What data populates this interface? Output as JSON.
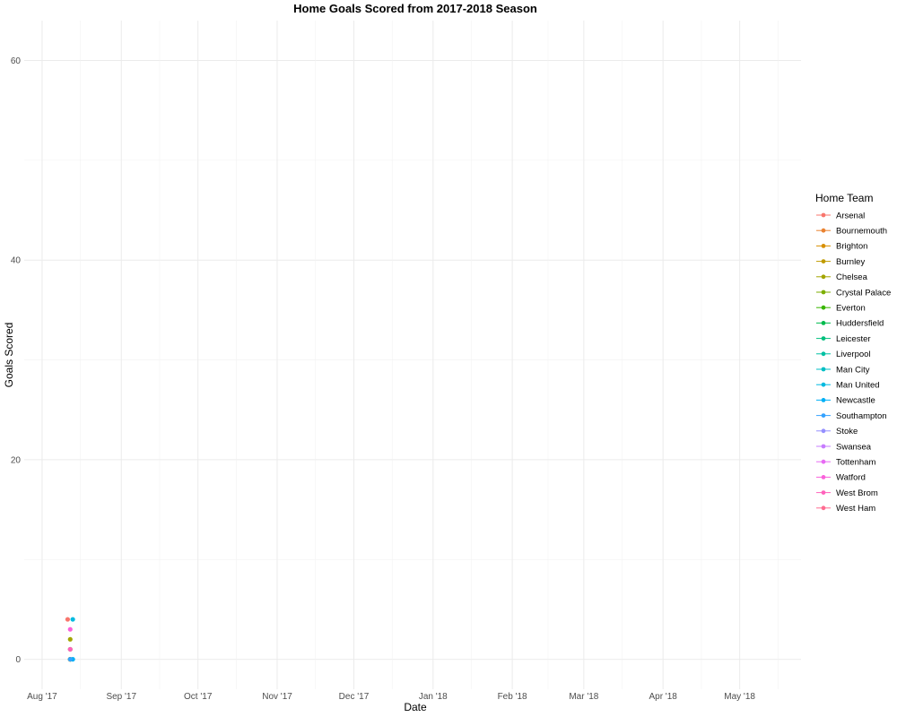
{
  "chart_data": {
    "type": "scatter",
    "title": "Home Goals Scored from 2017-2018 Season",
    "xlabel": "Date",
    "ylabel": "Goals Scored",
    "x_type": "date",
    "xlim": [
      "2017-07-25",
      "2018-05-25"
    ],
    "ylim": [
      -3,
      64
    ],
    "x_ticks": [
      {
        "date": "2017-08-01",
        "label": "Aug '17"
      },
      {
        "date": "2017-09-01",
        "label": "Sep '17"
      },
      {
        "date": "2017-10-01",
        "label": "Oct '17"
      },
      {
        "date": "2017-11-01",
        "label": "Nov '17"
      },
      {
        "date": "2017-12-01",
        "label": "Dec '17"
      },
      {
        "date": "2018-01-01",
        "label": "Jan '18"
      },
      {
        "date": "2018-02-01",
        "label": "Feb '18"
      },
      {
        "date": "2018-03-01",
        "label": "Mar '18"
      },
      {
        "date": "2018-04-01",
        "label": "Apr '18"
      },
      {
        "date": "2018-05-01",
        "label": "May '18"
      }
    ],
    "y_ticks": [
      0,
      20,
      40,
      60
    ],
    "grid": true,
    "legend": {
      "title": "Home Team",
      "position": "right"
    },
    "series": [
      {
        "name": "Arsenal",
        "color": "#F8766D",
        "points": [
          {
            "x": "2017-08-11",
            "y": 4
          }
        ]
      },
      {
        "name": "Bournemouth",
        "color": "#EA8331",
        "points": [
          {
            "x": "2017-08-12",
            "y": 0
          }
        ]
      },
      {
        "name": "Brighton",
        "color": "#D89000",
        "points": [
          {
            "x": "2017-08-12",
            "y": 0
          }
        ]
      },
      {
        "name": "Burnley",
        "color": "#C09B00",
        "points": [
          {
            "x": "2017-08-12",
            "y": 0
          }
        ]
      },
      {
        "name": "Chelsea",
        "color": "#A3A500",
        "points": [
          {
            "x": "2017-08-12",
            "y": 2
          }
        ]
      },
      {
        "name": "Crystal Palace",
        "color": "#7CAE00",
        "points": [
          {
            "x": "2017-08-12",
            "y": 0
          }
        ]
      },
      {
        "name": "Everton",
        "color": "#39B600",
        "points": [
          {
            "x": "2017-08-12",
            "y": 1
          }
        ]
      },
      {
        "name": "Huddersfield",
        "color": "#00BB4E",
        "points": []
      },
      {
        "name": "Leicester",
        "color": "#00BF7D",
        "points": []
      },
      {
        "name": "Liverpool",
        "color": "#00C1A3",
        "points": []
      },
      {
        "name": "Man City",
        "color": "#00BFC4",
        "points": []
      },
      {
        "name": "Man United",
        "color": "#00BAE0",
        "points": [
          {
            "x": "2017-08-13",
            "y": 4
          }
        ]
      },
      {
        "name": "Newcastle",
        "color": "#00B0F6",
        "points": [
          {
            "x": "2017-08-13",
            "y": 0
          }
        ]
      },
      {
        "name": "Southampton",
        "color": "#35A2FF",
        "points": [
          {
            "x": "2017-08-12",
            "y": 0
          }
        ]
      },
      {
        "name": "Stoke",
        "color": "#9590FF",
        "points": []
      },
      {
        "name": "Swansea",
        "color": "#C77CFF",
        "points": []
      },
      {
        "name": "Tottenham",
        "color": "#E76BF3",
        "points": []
      },
      {
        "name": "Watford",
        "color": "#FA62DB",
        "points": [
          {
            "x": "2017-08-12",
            "y": 3
          }
        ]
      },
      {
        "name": "West Brom",
        "color": "#FF62BC",
        "points": [
          {
            "x": "2017-08-12",
            "y": 1
          }
        ]
      },
      {
        "name": "West Ham",
        "color": "#FF6C91",
        "points": []
      }
    ]
  }
}
